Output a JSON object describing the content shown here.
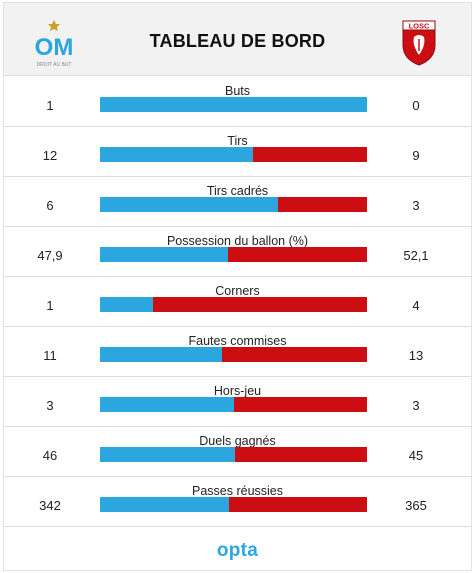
{
  "header": {
    "title": "TABLEAU DE BORD",
    "home_team_logo": "om-logo",
    "home_logo_caption": "DROIT AU BUT",
    "away_team_logo": "losc-logo",
    "away_logo_text": "LOSC"
  },
  "colors": {
    "home": "#2ca6de",
    "away": "#cc0e13"
  },
  "stats": [
    {
      "label": "Buts",
      "home": "1",
      "away": "0",
      "home_share": 1.0
    },
    {
      "label": "Tirs",
      "home": "12",
      "away": "9",
      "home_share": 0.5714
    },
    {
      "label": "Tirs cadrés",
      "home": "6",
      "away": "3",
      "home_share": 0.6667
    },
    {
      "label": "Possession du ballon (%)",
      "home": "47,9",
      "away": "52,1",
      "home_share": 0.479
    },
    {
      "label": "Corners",
      "home": "1",
      "away": "4",
      "home_share": 0.2
    },
    {
      "label": "Fautes commises",
      "home": "11",
      "away": "13",
      "home_share": 0.4583
    },
    {
      "label": "Hors-jeu",
      "home": "3",
      "away": "3",
      "home_share": 0.5
    },
    {
      "label": "Duels gagnés",
      "home": "46",
      "away": "45",
      "home_share": 0.5055
    },
    {
      "label": "Passes réussies",
      "home": "342",
      "away": "365",
      "home_share": 0.4837
    }
  ],
  "footer": {
    "brand": "opta"
  }
}
